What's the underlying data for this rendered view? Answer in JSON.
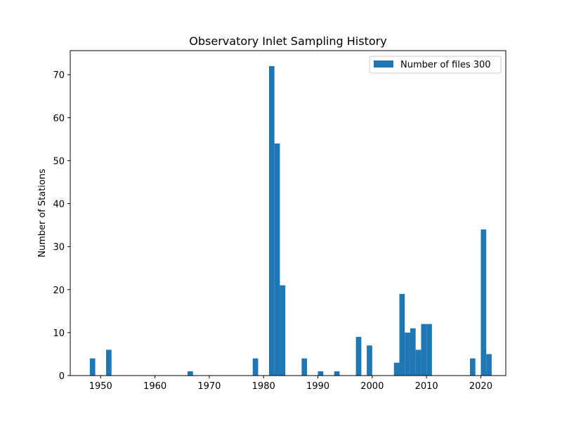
{
  "chart_data": {
    "type": "bar",
    "title": "Observatory Inlet Sampling History",
    "xlabel": "",
    "ylabel": "Number of Stations",
    "xlim": [
      1944.4,
      2024.6
    ],
    "ylim": [
      0,
      75.6
    ],
    "x_ticks": [
      1950,
      1960,
      1970,
      1980,
      1990,
      2000,
      2010,
      2020
    ],
    "y_ticks": [
      0,
      10,
      20,
      30,
      40,
      50,
      60,
      70
    ],
    "bin_width": 1,
    "legend": {
      "position": "top-right",
      "label": "Number of files 300"
    },
    "bar_color": "#1f77b4",
    "series": [
      {
        "name": "Number of files 300",
        "bins": [
          {
            "x": 1948,
            "value": 4
          },
          {
            "x": 1951,
            "value": 6
          },
          {
            "x": 1966,
            "value": 1
          },
          {
            "x": 1978,
            "value": 4
          },
          {
            "x": 1981,
            "value": 72
          },
          {
            "x": 1982,
            "value": 54
          },
          {
            "x": 1983,
            "value": 21
          },
          {
            "x": 1987,
            "value": 4
          },
          {
            "x": 1990,
            "value": 1
          },
          {
            "x": 1993,
            "value": 1
          },
          {
            "x": 1997,
            "value": 9
          },
          {
            "x": 1999,
            "value": 7
          },
          {
            "x": 2004,
            "value": 3
          },
          {
            "x": 2005,
            "value": 19
          },
          {
            "x": 2006,
            "value": 10
          },
          {
            "x": 2007,
            "value": 11
          },
          {
            "x": 2008,
            "value": 6
          },
          {
            "x": 2009,
            "value": 12
          },
          {
            "x": 2010,
            "value": 12
          },
          {
            "x": 2018,
            "value": 4
          },
          {
            "x": 2020,
            "value": 34
          },
          {
            "x": 2021,
            "value": 5
          }
        ]
      }
    ]
  }
}
